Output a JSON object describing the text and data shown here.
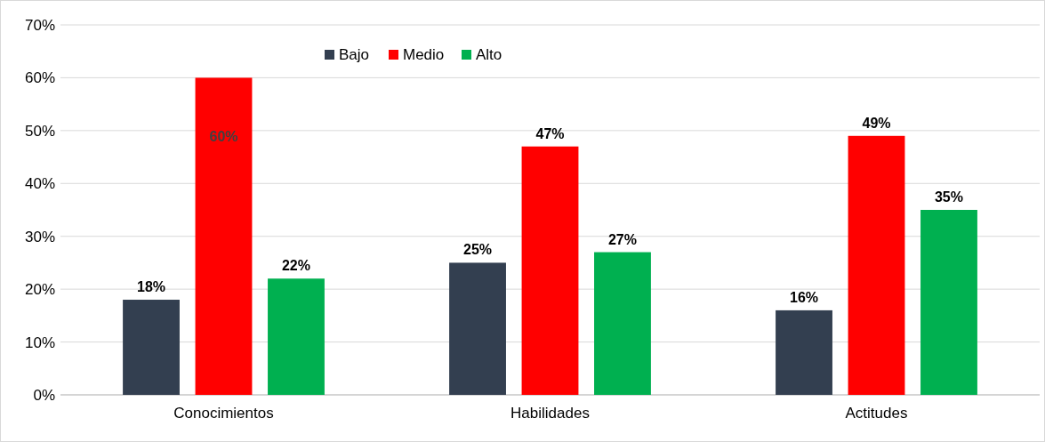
{
  "chart_data": {
    "type": "bar",
    "categories": [
      "Conocimientos",
      "Habilidades",
      "Actitudes"
    ],
    "series": [
      {
        "name": "Bajo",
        "color": "#333f50",
        "values": [
          18,
          25,
          16
        ],
        "value_labels": [
          "18%",
          "25%",
          "16%"
        ]
      },
      {
        "name": "Medio",
        "color": "#ff0000",
        "values": [
          60,
          47,
          49
        ],
        "value_labels": [
          "60%",
          "47%",
          "49%"
        ]
      },
      {
        "name": "Alto",
        "color": "#00b050",
        "values": [
          22,
          27,
          35
        ],
        "value_labels": [
          "22%",
          "27%",
          "35%"
        ]
      }
    ],
    "ylim": [
      0,
      70
    ],
    "yticks": [
      {
        "value": 0,
        "label": "0%"
      },
      {
        "value": 10,
        "label": "10%"
      },
      {
        "value": 20,
        "label": "20%"
      },
      {
        "value": 30,
        "label": "30%"
      },
      {
        "value": 40,
        "label": "40%"
      },
      {
        "value": 50,
        "label": "50%"
      },
      {
        "value": 60,
        "label": "60%"
      },
      {
        "value": 70,
        "label": "70%"
      }
    ],
    "grid": "y",
    "legend": "top"
  }
}
